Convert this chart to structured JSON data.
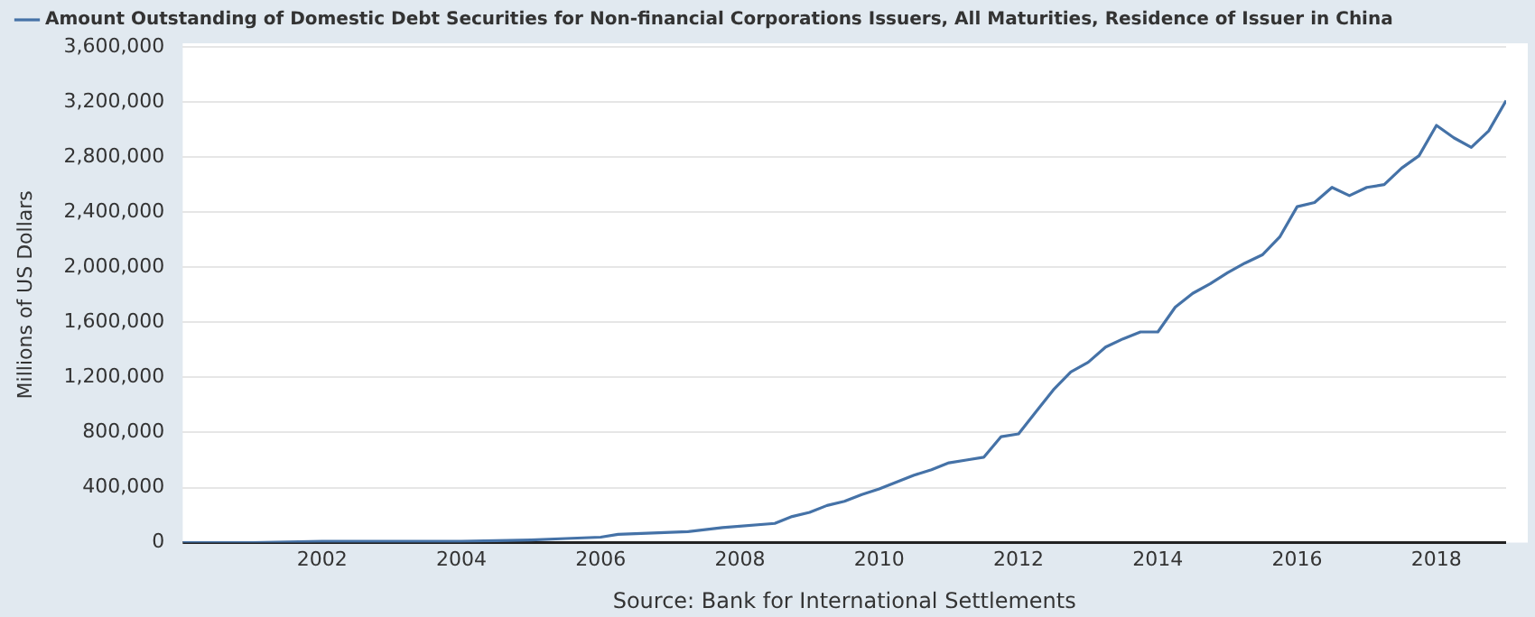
{
  "chart_data": {
    "type": "line",
    "ylabel": "Millions of US Dollars",
    "annotations": [
      "Source: Bank for International Settlements"
    ],
    "x": [
      "2000-01",
      "2001-01",
      "2002-01",
      "2003-01",
      "2004-01",
      "2005-01",
      "2005-07",
      "2006-01",
      "2006-04",
      "2006-10",
      "2007-04",
      "2007-10",
      "2008-07",
      "2008-10",
      "2009-01",
      "2009-04",
      "2009-07",
      "2009-10",
      "2010-01",
      "2010-07",
      "2010-10",
      "2011-01",
      "2011-04",
      "2011-07",
      "2011-10",
      "2012-01",
      "2012-04",
      "2012-07",
      "2012-10",
      "2013-01",
      "2013-04",
      "2013-07",
      "2013-10",
      "2014-01",
      "2014-04",
      "2014-07",
      "2014-10",
      "2015-01",
      "2015-04",
      "2015-07",
      "2015-10",
      "2016-01",
      "2016-04",
      "2016-07",
      "2016-10",
      "2017-01",
      "2017-04",
      "2017-07",
      "2017-10",
      "2018-01",
      "2018-04",
      "2018-07",
      "2018-10",
      "2019-01"
    ],
    "series": [
      {
        "name": "Amount Outstanding of Domestic Debt Securities for Non-financial Corporations Issuers, All Maturities, Residence of Issuer in China",
        "color": "#4572a7",
        "values": [
          0,
          0,
          10000,
          10000,
          10000,
          20000,
          30000,
          40000,
          60000,
          70000,
          80000,
          110000,
          140000,
          190000,
          220000,
          270000,
          300000,
          350000,
          390000,
          490000,
          530000,
          580000,
          600000,
          620000,
          770000,
          790000,
          950000,
          1110000,
          1240000,
          1310000,
          1420000,
          1480000,
          1530000,
          1530000,
          1710000,
          1810000,
          1880000,
          1960000,
          2030000,
          2090000,
          2220000,
          2440000,
          2470000,
          2580000,
          2520000,
          2580000,
          2600000,
          2720000,
          2810000,
          3030000,
          2940000,
          2870000,
          2990000,
          3210000
        ]
      }
    ],
    "xlim": [
      "2000-01",
      "2019-01"
    ],
    "xticks": [
      "2002",
      "2004",
      "2006",
      "2008",
      "2010",
      "2012",
      "2014",
      "2016",
      "2018"
    ],
    "ylim": [
      0,
      3600000
    ],
    "yticks": [
      {
        "value": 0,
        "label": "0"
      },
      {
        "value": 400000,
        "label": "400,000"
      },
      {
        "value": 800000,
        "label": "800,000"
      },
      {
        "value": 1200000,
        "label": "1,200,000"
      },
      {
        "value": 1600000,
        "label": "1,600,000"
      },
      {
        "value": 2000000,
        "label": "2,000,000"
      },
      {
        "value": 2400000,
        "label": "2,400,000"
      },
      {
        "value": 2800000,
        "label": "2,800,000"
      },
      {
        "value": 3200000,
        "label": "3,200,000"
      },
      {
        "value": 3600000,
        "label": "3,600,000"
      }
    ],
    "grid": "y",
    "legend": "top left",
    "marker": "none",
    "line_style": "solid"
  }
}
